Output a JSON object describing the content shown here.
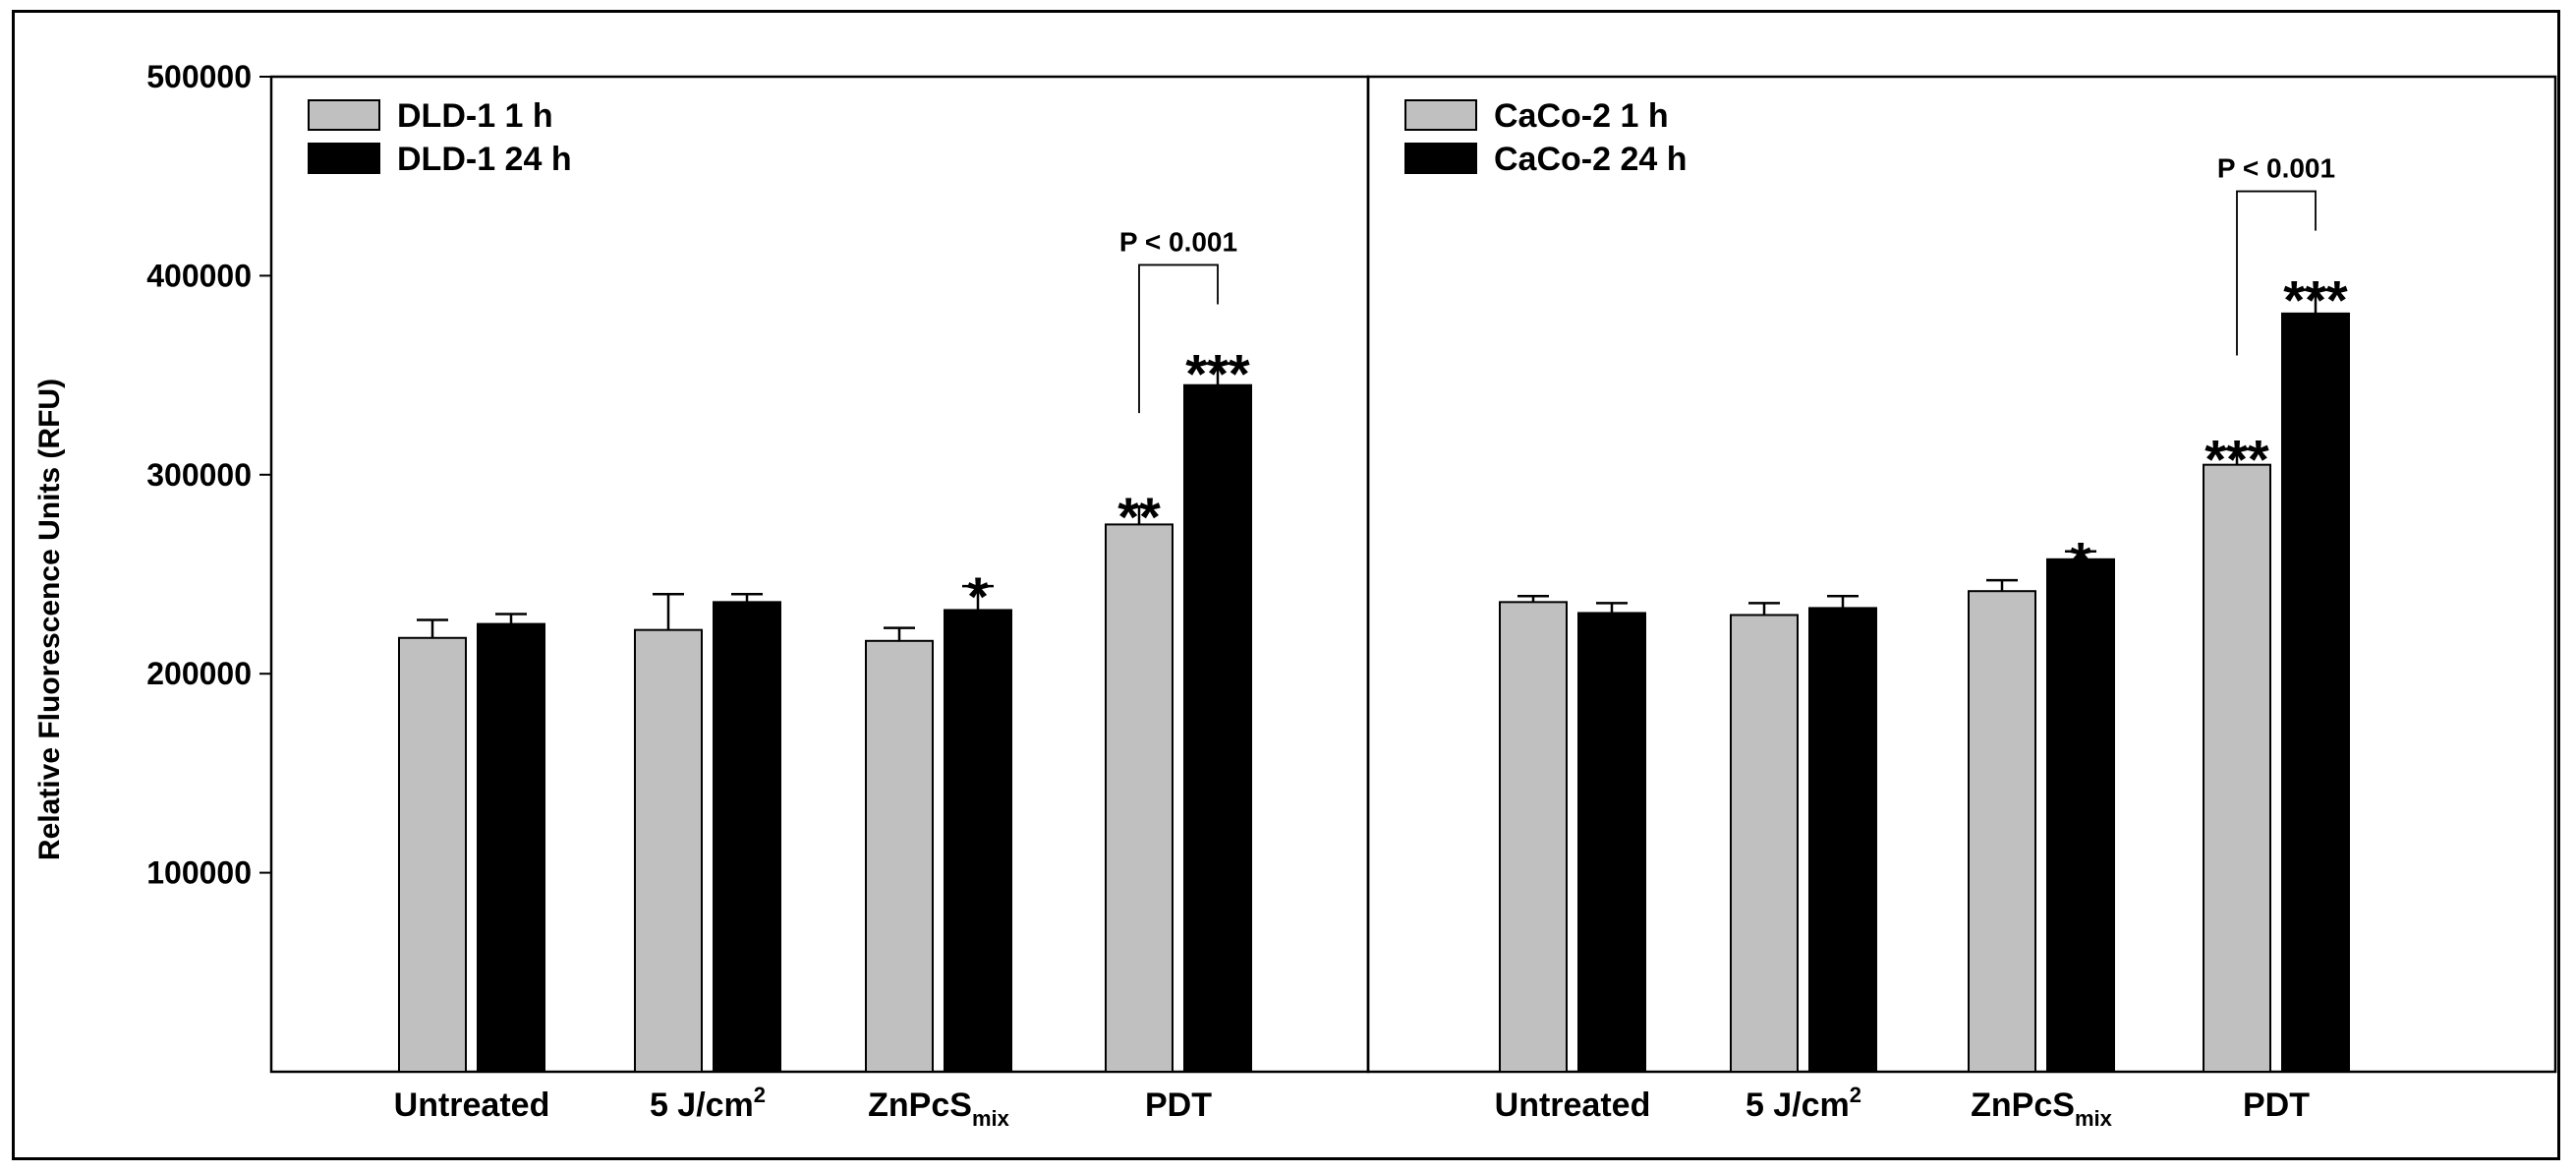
{
  "chart_data": {
    "type": "bar",
    "ylabel": "Relative Fluorescence Units (RFU)",
    "ylim": [
      0,
      500000
    ],
    "yticks": [
      100000,
      200000,
      300000,
      400000,
      500000
    ],
    "ytick_labels": [
      "100000",
      "200000",
      "300000",
      "400000",
      "500000"
    ],
    "panels": [
      {
        "categories": [
          {
            "label": "Untreated"
          },
          {
            "label": "5 J/cm",
            "sup": "2"
          },
          {
            "label": "ZnPcS",
            "sub": "mix"
          },
          {
            "label": "PDT"
          }
        ],
        "series": [
          {
            "name": "DLD-1 1 h",
            "color": "#c0c0c0",
            "values": [
              218000,
              222000,
              216500,
              275000
            ],
            "errors": [
              9000,
              18000,
              6500,
              9000
            ],
            "significance": [
              "",
              "",
              "",
              "**"
            ]
          },
          {
            "name": "DLD-1 24 h",
            "color": "#000000",
            "values": [
              225000,
              236000,
              232000,
              345000
            ],
            "errors": [
              5000,
              4000,
              12000,
              11000
            ],
            "significance": [
              "",
              "",
              "*",
              "***"
            ]
          }
        ],
        "annotation": {
          "text": "P < 0.001",
          "category": "PDT"
        }
      },
      {
        "categories": [
          {
            "label": "Untreated"
          },
          {
            "label": "5 J/cm",
            "sup": "2"
          },
          {
            "label": "ZnPcS",
            "sub": "mix"
          },
          {
            "label": "PDT"
          }
        ],
        "series": [
          {
            "name": "CaCo-2 1 h",
            "color": "#c0c0c0",
            "values": [
              236000,
              229500,
              241500,
              305000
            ],
            "errors": [
              3000,
              6000,
              5500,
              8000
            ],
            "significance": [
              "",
              "",
              "",
              "***"
            ]
          },
          {
            "name": "CaCo-2 24 h",
            "color": "#000000",
            "values": [
              230500,
              233000,
              257500,
              381000
            ],
            "errors": [
              5000,
              6000,
              4000,
              12000
            ],
            "significance": [
              "",
              "",
              "*",
              "***"
            ]
          }
        ],
        "annotation": {
          "text": "P < 0.001",
          "category": "PDT"
        }
      }
    ]
  }
}
